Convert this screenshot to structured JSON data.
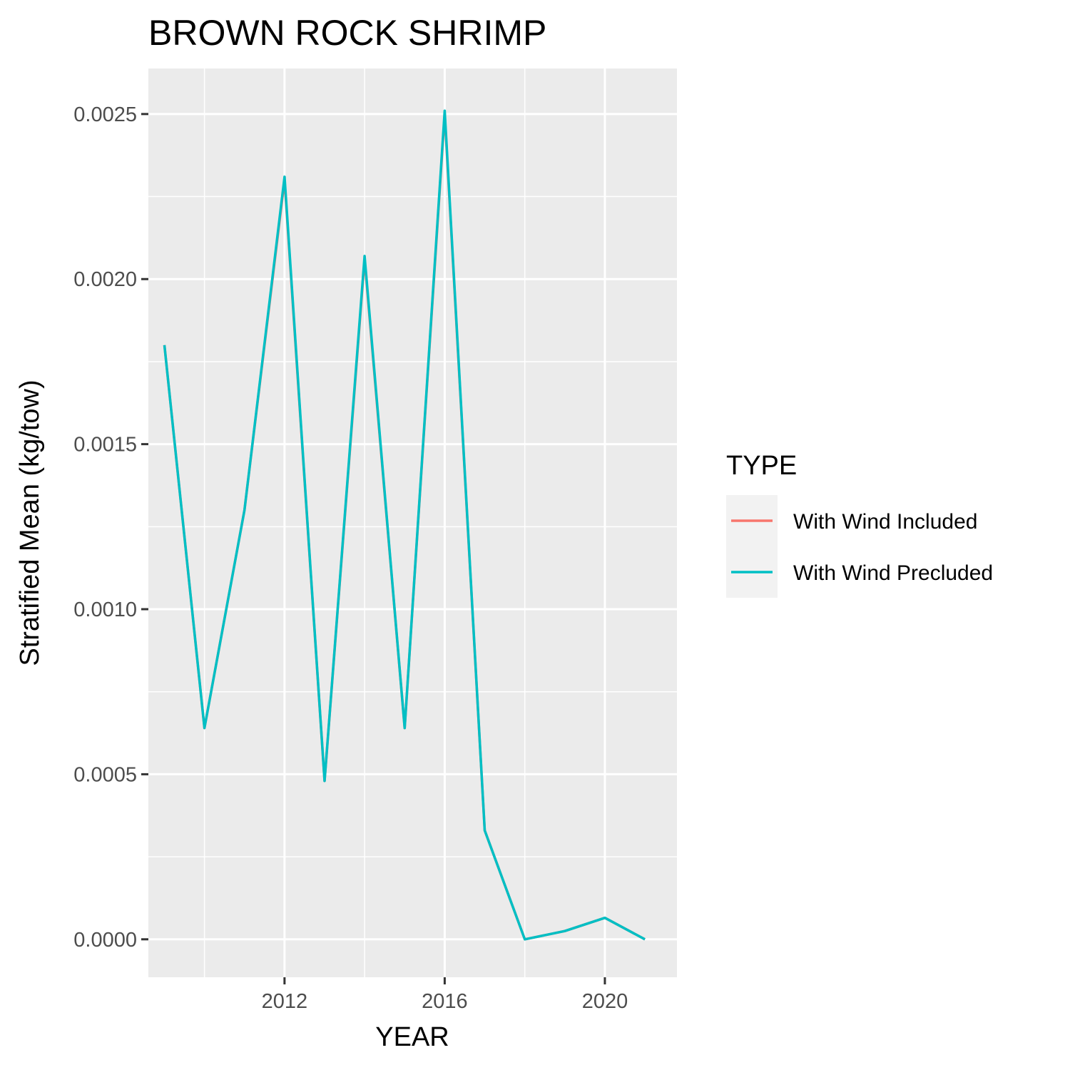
{
  "chart_data": {
    "type": "line",
    "title": "BROWN ROCK SHRIMP",
    "xlabel": "YEAR",
    "ylabel": "Stratified Mean (kg/tow)",
    "x_ticks": [
      2012,
      2016,
      2020
    ],
    "y_ticks": [
      "0.0000",
      "0.0005",
      "0.0010",
      "0.0015",
      "0.0020",
      "0.0025"
    ],
    "xlim": [
      2008.6,
      2021.8
    ],
    "ylim": [
      -0.000115,
      0.002638
    ],
    "grid": true,
    "legend": {
      "title": "TYPE",
      "position": "right"
    },
    "x": [
      2009,
      2010,
      2011,
      2012,
      2013,
      2014,
      2015,
      2016,
      2017,
      2018,
      2019,
      2020,
      2021
    ],
    "series": [
      {
        "name": "With Wind Included",
        "color": "#F8766D",
        "values": [
          0.0018,
          0.00064,
          0.0013,
          0.0023,
          0.00048,
          0.00206,
          0.00064,
          0.0025,
          0.00033,
          0.0,
          2.5e-05,
          6.5e-05,
          0.0
        ]
      },
      {
        "name": "With Wind Precluded",
        "color": "#00BFC4",
        "values": [
          0.0018,
          0.00064,
          0.0013,
          0.00231,
          0.00048,
          0.00207,
          0.00064,
          0.00251,
          0.00033,
          0.0,
          2.5e-05,
          6.5e-05,
          0.0
        ]
      }
    ],
    "colors": {
      "panel_bg": "#EBEBEB",
      "grid": "#FFFFFF",
      "legend_key_bg": "#F2F2F2"
    }
  }
}
